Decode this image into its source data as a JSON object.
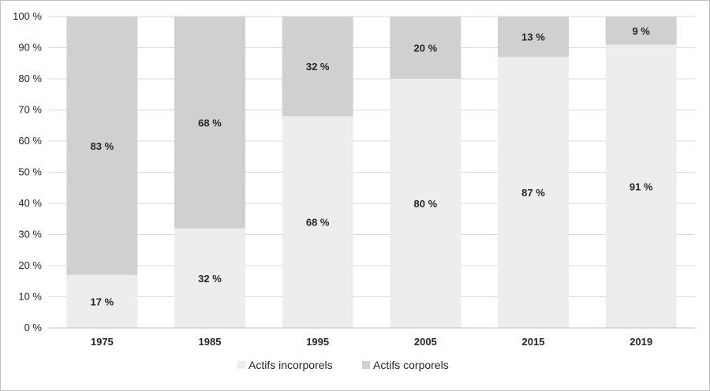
{
  "chart_data": {
    "type": "bar",
    "stacked": true,
    "categories": [
      "1975",
      "1985",
      "1995",
      "2005",
      "2015",
      "2019"
    ],
    "series": [
      {
        "name": "Actifs incorporels",
        "values": [
          17,
          32,
          68,
          80,
          87,
          91
        ],
        "color": "#ededed",
        "labels": [
          "17 %",
          "32 %",
          "68 %",
          "80 %",
          "87 %",
          "91 %"
        ]
      },
      {
        "name": "Actifs corporels",
        "values": [
          83,
          68,
          32,
          20,
          13,
          9
        ],
        "color": "#d0d0d0",
        "labels": [
          "83 %",
          "68 %",
          "32 %",
          "20 %",
          "13 %",
          "9 %"
        ]
      }
    ],
    "yticks": [
      "0 %",
      "10 %",
      "20 %",
      "30 %",
      "40 %",
      "50 %",
      "60 %",
      "70 %",
      "80 %",
      "90 %",
      "100 %"
    ],
    "ylim": [
      0,
      100
    ],
    "grid": true,
    "legend_position": "bottom"
  }
}
